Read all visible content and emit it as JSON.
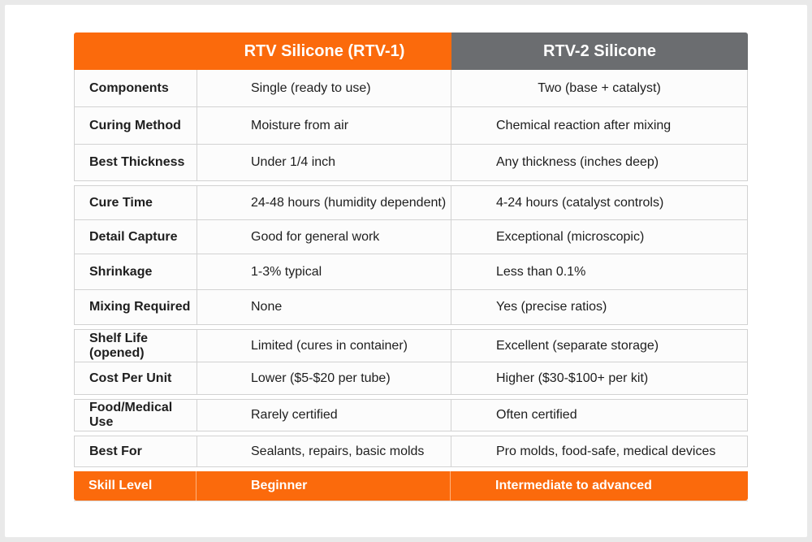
{
  "header": {
    "col1": "RTV Silicone (RTV-1)",
    "col2": "RTV-2 Silicone"
  },
  "rows": [
    {
      "label": "Components",
      "rtv1": "Single (ready to use)",
      "rtv2": "Two (base + catalyst)"
    },
    {
      "label": "Curing Method",
      "rtv1": "Moisture from air",
      "rtv2": "Chemical reaction after mixing"
    },
    {
      "label": "Best Thickness",
      "rtv1": "Under 1/4 inch",
      "rtv2": "Any thickness (inches deep)"
    },
    {
      "label": "Cure Time",
      "rtv1": "24-48 hours (humidity dependent)",
      "rtv2": "4-24 hours (catalyst controls)"
    },
    {
      "label": "Detail Capture",
      "rtv1": "Good for general work",
      "rtv2": "Exceptional (microscopic)"
    },
    {
      "label": "Shrinkage",
      "rtv1": "1-3% typical",
      "rtv2": "Less than 0.1%"
    },
    {
      "label": "Mixing Required",
      "rtv1": "None",
      "rtv2": "Yes (precise ratios)"
    },
    {
      "label": "Shelf Life (opened)",
      "rtv1": "Limited (cures in container)",
      "rtv2": "Excellent (separate storage)"
    },
    {
      "label": "Cost Per Unit",
      "rtv1": "Lower ($5-$20 per tube)",
      "rtv2": "Higher ($30-$100+ per kit)"
    },
    {
      "label": "Food/Medical Use",
      "rtv1": "Rarely certified",
      "rtv2": "Often certified"
    },
    {
      "label": "Best For",
      "rtv1": "Sealants, repairs, basic molds",
      "rtv2": "Pro molds, food-safe, medical devices"
    },
    {
      "label": "Skill Level",
      "rtv1": "Beginner",
      "rtv2": "Intermediate to advanced"
    }
  ],
  "colors": {
    "accent": "#fb6a0c",
    "secondary_header": "#6b6d70"
  }
}
